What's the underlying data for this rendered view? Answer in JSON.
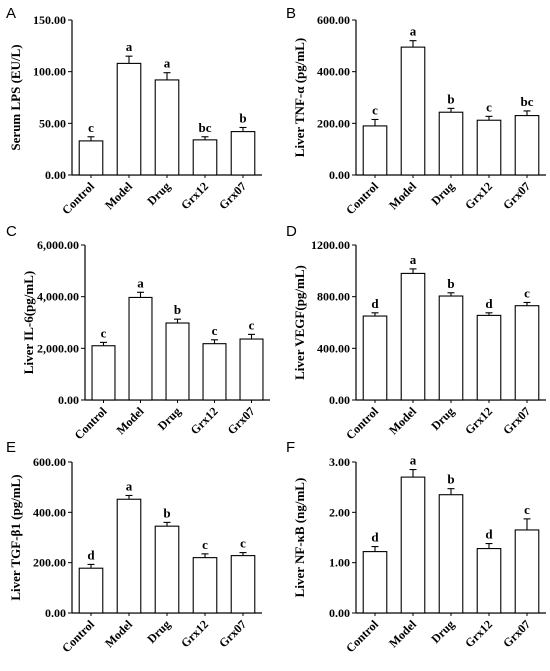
{
  "chart_data": [
    {
      "panel": "A",
      "type": "bar",
      "ylabel": "Serum LPS (EU/L)",
      "ylim": [
        0,
        150
      ],
      "yticks": [
        "0.00",
        "50.00",
        "100.00",
        "150.00"
      ],
      "categories": [
        "Control",
        "Model",
        "Drug",
        "Grx12",
        "Grx07"
      ],
      "values": [
        33,
        108,
        92,
        34,
        42
      ],
      "errors": [
        4,
        7,
        7,
        3,
        4
      ],
      "significance": [
        "c",
        "a",
        "a",
        "bc",
        "b"
      ]
    },
    {
      "panel": "B",
      "type": "bar",
      "ylabel": "Liver TNF-α (pg/mL)",
      "ylim": [
        0,
        600
      ],
      "yticks": [
        "0.00",
        "200.00",
        "400.00",
        "600.00"
      ],
      "categories": [
        "Control",
        "Model",
        "Drug",
        "Grx12",
        "Grx07"
      ],
      "values": [
        190,
        495,
        243,
        212,
        230
      ],
      "errors": [
        25,
        25,
        15,
        15,
        18
      ],
      "significance": [
        "c",
        "a",
        "b",
        "c",
        "bc"
      ]
    },
    {
      "panel": "C",
      "type": "bar",
      "ylabel": "Liver IL-6(pg/mL)",
      "ylim": [
        0,
        6000
      ],
      "yticks": [
        "0.00",
        "2,000.00",
        "4,000.00",
        "6,000.00"
      ],
      "categories": [
        "Control",
        "Model",
        "Drug",
        "Grx12",
        "Grx07"
      ],
      "values": [
        2100,
        3970,
        2980,
        2180,
        2360
      ],
      "errors": [
        130,
        200,
        150,
        150,
        180
      ],
      "significance": [
        "c",
        "a",
        "b",
        "c",
        "c"
      ]
    },
    {
      "panel": "D",
      "type": "bar",
      "ylabel": "Liver VEGF(pg/mL)",
      "ylim": [
        0,
        1200
      ],
      "yticks": [
        "0.00",
        "400.00",
        "800.00",
        "1200.00"
      ],
      "categories": [
        "Control",
        "Model",
        "Drug",
        "Grx12",
        "Grx07"
      ],
      "values": [
        650,
        980,
        805,
        655,
        730
      ],
      "errors": [
        25,
        35,
        25,
        20,
        25
      ],
      "significance": [
        "d",
        "a",
        "b",
        "d",
        "c"
      ]
    },
    {
      "panel": "E",
      "type": "bar",
      "ylabel": "Liver TGF-β1 (pg/mL)",
      "ylim": [
        0,
        600
      ],
      "yticks": [
        "0.00",
        "200.00",
        "400.00",
        "600.00"
      ],
      "categories": [
        "Control",
        "Model",
        "Drug",
        "Grx12",
        "Grx07"
      ],
      "values": [
        178,
        452,
        345,
        220,
        228
      ],
      "errors": [
        15,
        15,
        15,
        15,
        12
      ],
      "significance": [
        "d",
        "a",
        "b",
        "c",
        "c"
      ]
    },
    {
      "panel": "F",
      "type": "bar",
      "ylabel": "Liver NF-κB (ng/mL)",
      "ylim": [
        0,
        3
      ],
      "yticks": [
        "0.00",
        "1.00",
        "2.00",
        "3.00"
      ],
      "categories": [
        "Control",
        "Model",
        "Drug",
        "Grx12",
        "Grx07"
      ],
      "values": [
        1.22,
        2.7,
        2.35,
        1.28,
        1.65
      ],
      "errors": [
        0.1,
        0.15,
        0.12,
        0.1,
        0.22
      ],
      "significance": [
        "d",
        "a",
        "b",
        "d",
        "c"
      ]
    }
  ]
}
